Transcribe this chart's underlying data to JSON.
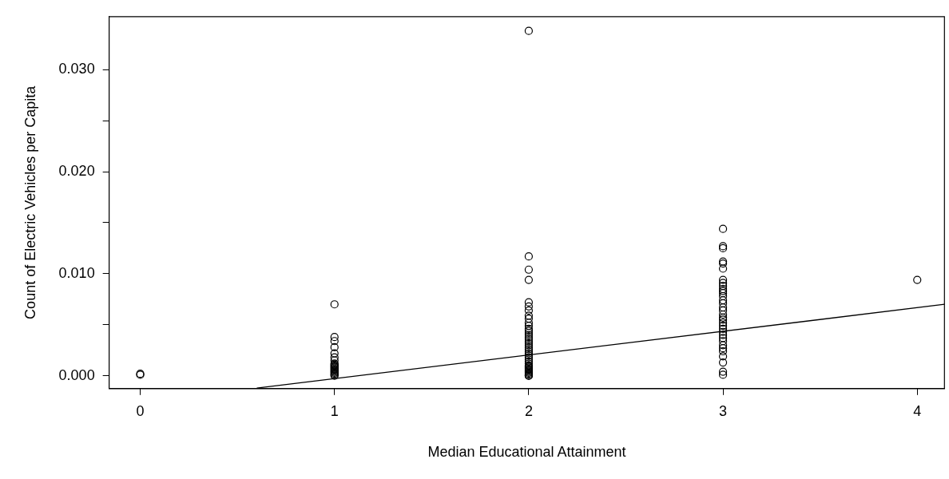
{
  "chart_data": {
    "type": "scatter",
    "xlabel": "Median Educational Attainment",
    "ylabel": "Count of Electric Vehicles per Capita",
    "xlim": [
      -0.16,
      4.14
    ],
    "xticks": [
      0,
      1,
      2,
      3,
      4
    ],
    "ylim": [
      -0.00126,
      0.0352
    ],
    "yticks": [
      {
        "value": 0,
        "label": "0.000"
      },
      {
        "value": 0.005,
        "label": null
      },
      {
        "value": 0.01,
        "label": "0.010"
      },
      {
        "value": 0.015,
        "label": null
      },
      {
        "value": 0.02,
        "label": "0.020"
      },
      {
        "value": 0.025,
        "label": null
      },
      {
        "value": 0.03,
        "label": "0.030"
      }
    ],
    "grid": false,
    "legend": false,
    "marker": "circle",
    "series": [
      {
        "type": "scatter",
        "color": "#000000",
        "x": [
          0,
          0,
          1,
          1,
          1,
          1,
          1,
          1,
          1,
          1,
          1,
          1,
          1,
          1,
          1,
          1,
          1,
          1,
          1,
          1,
          1,
          1,
          2,
          2,
          2,
          2,
          2,
          2,
          2,
          2,
          2,
          2,
          2,
          2,
          2,
          2,
          2,
          2,
          2,
          2,
          2,
          2,
          2,
          2,
          2,
          2,
          2,
          2,
          2,
          2,
          2,
          2,
          2,
          2,
          2,
          2,
          2,
          2,
          2,
          2,
          2,
          2,
          2,
          3,
          3,
          3,
          3,
          3,
          3,
          3,
          3,
          3,
          3,
          3,
          3,
          3,
          3,
          3,
          3,
          3,
          3,
          3,
          3,
          3,
          3,
          3,
          3,
          3,
          3,
          3,
          3,
          3,
          3,
          3,
          3,
          3,
          3,
          4
        ],
        "values": [
          0.0002,
          0.0001,
          0.007,
          0.0038,
          0.0034,
          0.0028,
          0.0022,
          0.0018,
          0.0015,
          0.0012,
          0.0011,
          0.001,
          0.0009,
          0.0008,
          0.0007,
          0.0006,
          0.0005,
          0.0004,
          0.0003,
          0.0002,
          0.0001,
          0.0,
          0.0338,
          0.0117,
          0.0104,
          0.0094,
          0.0072,
          0.0068,
          0.0064,
          0.0059,
          0.0056,
          0.0052,
          0.0049,
          0.0046,
          0.0044,
          0.0042,
          0.004,
          0.0038,
          0.0036,
          0.0034,
          0.0032,
          0.003,
          0.0028,
          0.0026,
          0.0024,
          0.0022,
          0.002,
          0.0018,
          0.0016,
          0.0014,
          0.0012,
          0.001,
          0.0009,
          0.0008,
          0.0007,
          0.0006,
          0.0005,
          0.0004,
          0.0003,
          0.0002,
          0.0001,
          0.0,
          0.0,
          0.0144,
          0.0127,
          0.0125,
          0.0112,
          0.011,
          0.0105,
          0.0094,
          0.0091,
          0.0088,
          0.0085,
          0.0083,
          0.0081,
          0.0078,
          0.0074,
          0.0071,
          0.0067,
          0.0064,
          0.006,
          0.0057,
          0.0055,
          0.0052,
          0.0049,
          0.0046,
          0.0043,
          0.004,
          0.0037,
          0.0034,
          0.003,
          0.0027,
          0.0024,
          0.0019,
          0.0013,
          0.0004,
          0.0001,
          0.0094
        ]
      },
      {
        "type": "line",
        "color": "#000000",
        "marker": "none",
        "x": [
          0.6,
          4.14
        ],
        "values": [
          -0.0012,
          0.007
        ]
      }
    ]
  }
}
